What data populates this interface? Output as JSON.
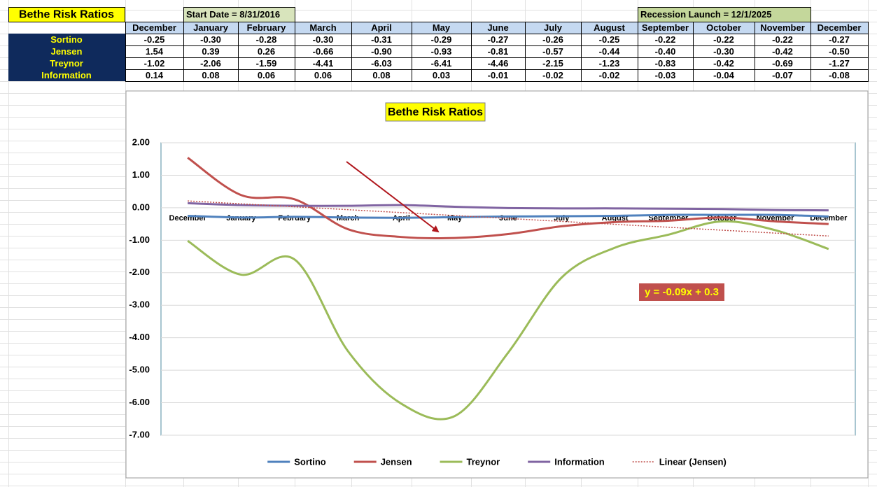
{
  "sheet": {
    "title": "Bethe Risk Ratios",
    "start_date": "Start Date = 8/31/2016",
    "recession_launch": "Recession Launch = 12/1/2025",
    "table": {
      "header": [
        "December",
        "January",
        "February",
        "March",
        "April",
        "May",
        "June",
        "July",
        "August",
        "September",
        "October",
        "November",
        "December"
      ],
      "rows": [
        {
          "name": "Sortino",
          "cells": [
            "-0.25",
            "-0.30",
            "-0.28",
            "-0.30",
            "-0.31",
            "-0.29",
            "-0.27",
            "-0.26",
            "-0.25",
            "-0.22",
            "-0.22",
            "-0.22",
            "-0.27"
          ]
        },
        {
          "name": "Jensen",
          "cells": [
            "1.54",
            "0.39",
            "0.26",
            "-0.66",
            "-0.90",
            "-0.93",
            "-0.81",
            "-0.57",
            "-0.44",
            "-0.40",
            "-0.30",
            "-0.42",
            "-0.50"
          ]
        },
        {
          "name": "Treynor",
          "cells": [
            "-1.02",
            "-2.06",
            "-1.59",
            "-4.41",
            "-6.03",
            "-6.41",
            "-4.46",
            "-2.15",
            "-1.23",
            "-0.83",
            "-0.42",
            "-0.69",
            "-1.27"
          ]
        },
        {
          "name": "Information",
          "cells": [
            "0.14",
            "0.08",
            "0.06",
            "0.06",
            "0.08",
            "0.03",
            "-0.01",
            "-0.02",
            "-0.02",
            "-0.03",
            "-0.04",
            "-0.07",
            "-0.08"
          ]
        }
      ]
    }
  },
  "chart_data": {
    "type": "line",
    "title": "Bethe Risk Ratios",
    "categories": [
      "December",
      "January",
      "February",
      "March",
      "April",
      "May",
      "June",
      "July",
      "August",
      "September",
      "October",
      "November",
      "December"
    ],
    "series": [
      {
        "name": "Sortino",
        "color": "#4f81bd",
        "values": [
          -0.25,
          -0.3,
          -0.28,
          -0.3,
          -0.31,
          -0.29,
          -0.27,
          -0.26,
          -0.25,
          -0.22,
          -0.22,
          -0.22,
          -0.27
        ]
      },
      {
        "name": "Jensen",
        "color": "#c0504d",
        "values": [
          1.54,
          0.39,
          0.26,
          -0.66,
          -0.9,
          -0.93,
          -0.81,
          -0.57,
          -0.44,
          -0.4,
          -0.3,
          -0.42,
          -0.5
        ]
      },
      {
        "name": "Treynor",
        "color": "#9bbb59",
        "values": [
          -1.02,
          -2.06,
          -1.59,
          -4.41,
          -6.03,
          -6.41,
          -4.46,
          -2.15,
          -1.23,
          -0.83,
          -0.42,
          -0.69,
          -1.27
        ]
      },
      {
        "name": "Information",
        "color": "#8064a2",
        "values": [
          0.14,
          0.08,
          0.06,
          0.06,
          0.08,
          0.03,
          -0.01,
          -0.02,
          -0.02,
          -0.03,
          -0.04,
          -0.07,
          -0.08
        ]
      },
      {
        "name": "Linear (Jensen)",
        "color": "#c0504d",
        "dashed": true,
        "smooth": false,
        "values": [
          0.21,
          0.12,
          0.03,
          -0.06,
          -0.15,
          -0.24,
          -0.33,
          -0.42,
          -0.51,
          -0.6,
          -0.69,
          -0.78,
          -0.87
        ]
      }
    ],
    "annotation": "y = -0.09x + 0.3",
    "ylim": [
      -7,
      2
    ],
    "yticks": [
      {
        "value": 2,
        "label": "2.00"
      },
      {
        "value": 1,
        "label": "1.00"
      },
      {
        "value": 0,
        "label": "0.00"
      },
      {
        "value": -1,
        "label": "-1.00"
      },
      {
        "value": -2,
        "label": "-2.00"
      },
      {
        "value": -3,
        "label": "-3.00"
      },
      {
        "value": -4,
        "label": "-4.00"
      },
      {
        "value": -5,
        "label": "-5.00"
      },
      {
        "value": -6,
        "label": "-6.00"
      },
      {
        "value": -7,
        "label": "-7.00"
      }
    ],
    "grid": true,
    "smooth": true,
    "legend": "bottom"
  }
}
